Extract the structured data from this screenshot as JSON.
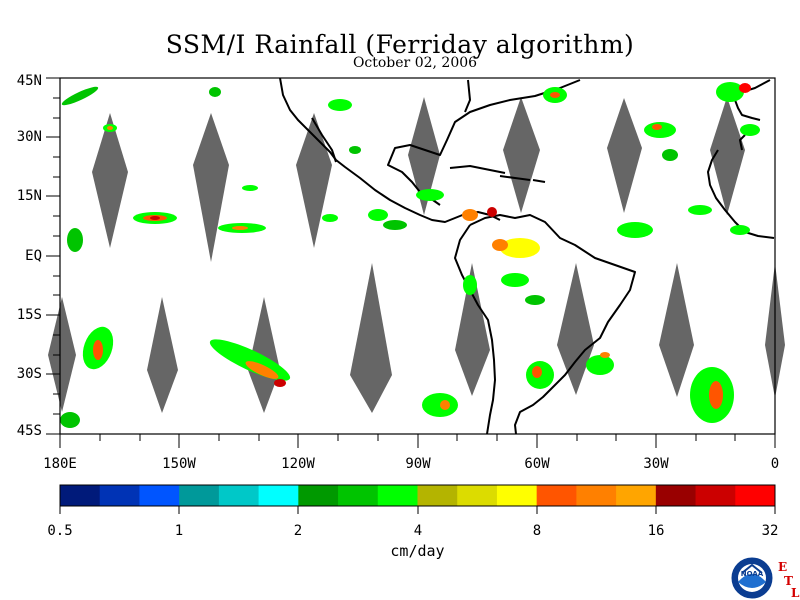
{
  "title": "SSM/I Rainfall (Ferriday algorithm)",
  "date": "October 02, 2006",
  "lat_labels": [
    "45N",
    "30N",
    "15N",
    "EQ",
    "15S",
    "30S",
    "45S"
  ],
  "lon_labels": [
    "180E",
    "150W",
    "120W",
    "90W",
    "60W",
    "30W",
    "0"
  ],
  "colorbar": {
    "colors": [
      "#001a7a",
      "#0033b5",
      "#0055ff",
      "#00999a",
      "#00c8c8",
      "#00ffff",
      "#009900",
      "#00c400",
      "#00ff00",
      "#b4b400",
      "#dcdc00",
      "#ffff00",
      "#ff5500",
      "#ff8000",
      "#ffa500",
      "#990000",
      "#cc0000",
      "#ff0000"
    ],
    "tick_labels": [
      "0.5",
      "1",
      "2",
      "4",
      "8",
      "16",
      "32"
    ],
    "unit": "cm/day"
  },
  "logo": {
    "text": "NOAA",
    "letters": [
      "E",
      "T",
      "L"
    ]
  },
  "colors": {
    "swath_gap": "#666666",
    "coast": "#000000"
  }
}
